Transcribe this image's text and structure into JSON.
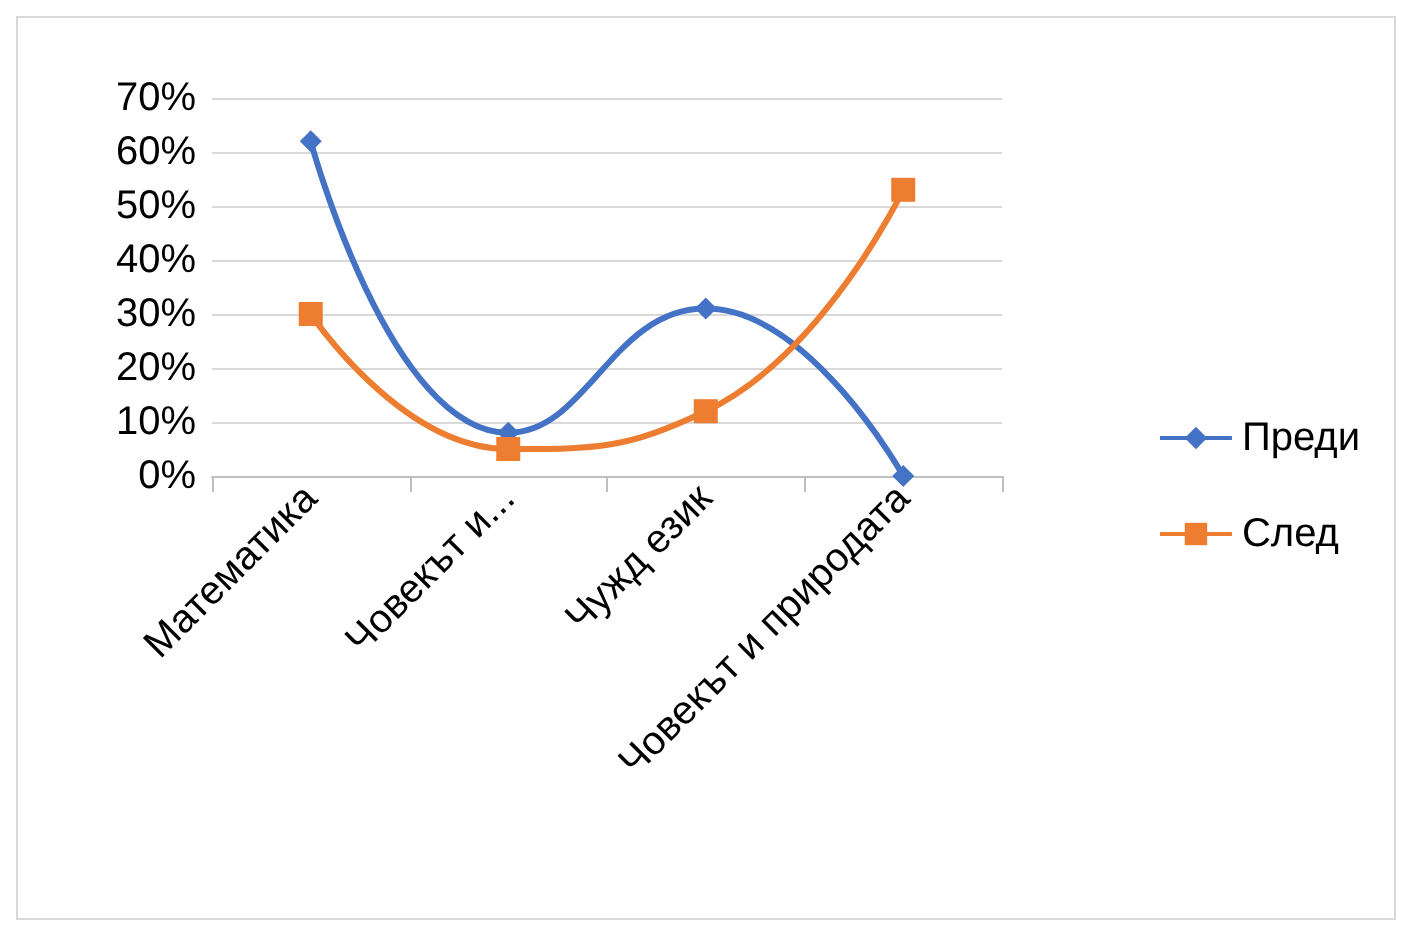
{
  "chart_data": {
    "type": "line",
    "categories": [
      "Математика",
      "Човекът и...",
      "Чужд език",
      "Човекът и природата"
    ],
    "series": [
      {
        "name": "Преди",
        "color": "#4472c4",
        "marker": "diamond",
        "values": [
          62,
          8,
          31,
          0
        ]
      },
      {
        "name": "След",
        "color": "#ed7d31",
        "marker": "square",
        "values": [
          30,
          5,
          12,
          53
        ]
      }
    ],
    "ylim": [
      0,
      70
    ],
    "yticks": [
      {
        "value": 0,
        "label": "0%"
      },
      {
        "value": 10,
        "label": "10%"
      },
      {
        "value": 20,
        "label": "20%"
      },
      {
        "value": 30,
        "label": "30%"
      },
      {
        "value": 40,
        "label": "40%"
      },
      {
        "value": 50,
        "label": "50%"
      },
      {
        "value": 60,
        "label": "60%"
      },
      {
        "value": 70,
        "label": "70%"
      }
    ],
    "grid": "y",
    "legend": "right"
  }
}
